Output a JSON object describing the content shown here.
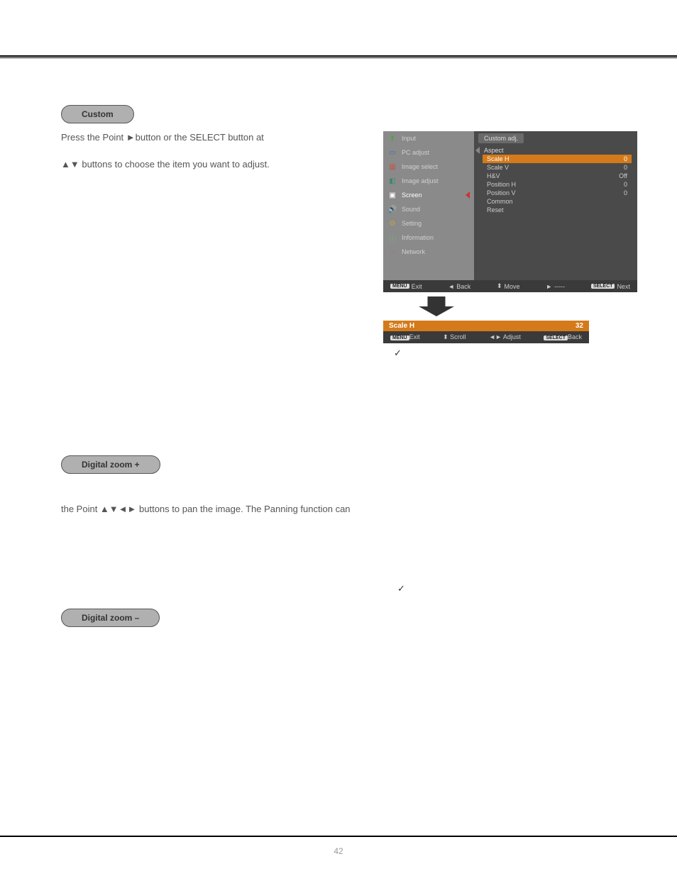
{
  "page_number": "42",
  "sections": {
    "custom": {
      "pill": "Custom",
      "line1": "Press the Point ►button or the SELECT button at",
      "line2": "▲▼ buttons to choose the item you want to adjust."
    },
    "digital_zoom_plus": {
      "pill": "Digital zoom +",
      "line1": "the Point ▲▼◄► buttons to pan the image. The Panning function can"
    },
    "digital_zoom_minus": {
      "pill": "Digital zoom –"
    }
  },
  "osd": {
    "sidebar": [
      {
        "icon": "⬍",
        "label": "Input",
        "color": "#5a9e4a"
      },
      {
        "icon": "▭",
        "label": "PC adjust",
        "color": "#4a6aaa"
      },
      {
        "icon": "▦",
        "label": "Image select",
        "color": "#c05a4a"
      },
      {
        "icon": "◧",
        "label": "Image adjust",
        "color": "#3a8a6a"
      },
      {
        "icon": "▣",
        "label": "Screen",
        "color": "#ffffff",
        "active": true
      },
      {
        "icon": "🔊",
        "label": "Sound",
        "color": "#5aaaaa"
      },
      {
        "icon": "⚙",
        "label": "Setting",
        "color": "#c0a04a"
      },
      {
        "icon": "ⓘ",
        "label": "Information",
        "color": "#6ac06a"
      },
      {
        "icon": "☁",
        "label": "Network",
        "color": "#888"
      }
    ],
    "panel_title": "Custom adj.",
    "aspect_label": "Aspect",
    "rows": [
      {
        "label": "Scale H",
        "value": "0",
        "hl": true
      },
      {
        "label": "Scale V",
        "value": "0"
      },
      {
        "label": "H&V",
        "value": "Off"
      },
      {
        "label": "Position H",
        "value": "0"
      },
      {
        "label": "Position V",
        "value": "0"
      },
      {
        "label": "Common",
        "value": ""
      },
      {
        "label": "Reset",
        "value": ""
      }
    ],
    "footer1": {
      "exit": "Exit",
      "back": "Back",
      "move": "Move",
      "dash": "-----",
      "next": "Next"
    },
    "bar2": {
      "label": "Scale H",
      "value": "32"
    },
    "footer2": {
      "exit": "Exit",
      "scroll": "Scroll",
      "adjust": "Adjust",
      "back": "Back"
    },
    "menu_key": "MENU",
    "select_key": "SELECT"
  },
  "check": "✓"
}
